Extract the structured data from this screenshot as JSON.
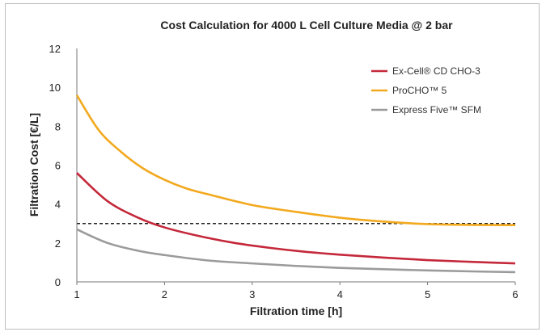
{
  "chart_data": {
    "type": "line",
    "title": "Cost Calculation for 4000 L Cell Culture Media @ 2 bar",
    "xlabel": "Filtration time [h]",
    "ylabel": "Filtration Cost [€/L]",
    "xlim": [
      1,
      6
    ],
    "ylim": [
      0,
      12
    ],
    "xticks": [
      1,
      2,
      3,
      4,
      5,
      6
    ],
    "yticks": [
      0,
      2,
      4,
      6,
      8,
      10,
      12
    ],
    "grid": false,
    "legend_position": "top-right",
    "series": [
      {
        "name": "Ex-Cell® CD CHO-3",
        "color": "#c4283a",
        "x": [
          1,
          1.35,
          1.7,
          2,
          2.4,
          2.8,
          3.2,
          3.6,
          4,
          4.5,
          5,
          5.5,
          6
        ],
        "y": [
          5.6,
          4.15,
          3.3,
          2.8,
          2.35,
          2.0,
          1.75,
          1.55,
          1.4,
          1.25,
          1.12,
          1.03,
          0.95
        ]
      },
      {
        "name": "ProCHO™ 5",
        "color": "#f2a91e",
        "x": [
          1,
          1.25,
          1.5,
          1.75,
          2,
          2.25,
          2.5,
          3,
          3.5,
          4,
          4.5,
          5,
          5.5,
          6
        ],
        "y": [
          9.6,
          7.8,
          6.7,
          5.85,
          5.25,
          4.8,
          4.5,
          3.95,
          3.6,
          3.3,
          3.1,
          2.97,
          2.93,
          2.92
        ]
      },
      {
        "name": "Express Five™ SFM",
        "color": "#9b9b9b",
        "x": [
          1,
          1.35,
          1.7,
          2,
          2.5,
          3,
          3.5,
          4,
          4.5,
          5,
          5.5,
          6
        ],
        "y": [
          2.7,
          2.0,
          1.6,
          1.38,
          1.1,
          0.95,
          0.82,
          0.72,
          0.65,
          0.59,
          0.54,
          0.5
        ]
      }
    ],
    "reference_line": {
      "y": 3,
      "style": "dashed",
      "color": "#222222"
    }
  }
}
